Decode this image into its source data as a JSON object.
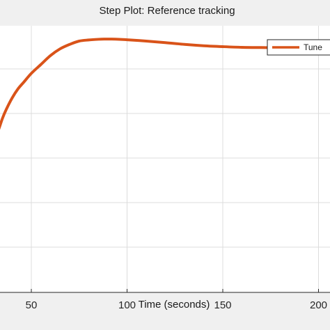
{
  "chart_data": {
    "type": "line",
    "title": "Step Plot: Reference tracking",
    "xlabel": "Time (seconds)",
    "ylabel": "",
    "xlim": [
      31,
      210
    ],
    "ylim": [
      0,
      1.45
    ],
    "grid": true,
    "x_ticks": [
      50,
      100,
      150,
      200
    ],
    "x_tick_labels": [
      "50",
      "100",
      "150",
      "200"
    ],
    "y_gridlines": [
      0.2,
      0.4,
      0.6,
      0.8,
      1.0,
      1.2,
      1.4
    ],
    "legend_position": "top-right",
    "series": [
      {
        "name": "Tune",
        "color": "#d95319",
        "x": [
          31,
          33,
          35,
          37,
          40,
          43,
          46,
          50,
          55,
          60,
          65,
          70,
          75,
          80,
          85,
          88,
          92,
          96,
          100,
          110,
          120,
          130,
          140,
          150,
          160,
          170,
          180,
          190,
          200,
          210
        ],
        "y": [
          0.69,
          0.73,
          0.78,
          0.82,
          0.87,
          0.91,
          0.94,
          0.98,
          1.02,
          1.06,
          1.09,
          1.11,
          1.125,
          1.13,
          1.133,
          1.134,
          1.134,
          1.133,
          1.131,
          1.125,
          1.118,
          1.11,
          1.104,
          1.1,
          1.097,
          1.096,
          1.0955,
          1.0955,
          1.0955,
          1.0955
        ]
      }
    ]
  }
}
